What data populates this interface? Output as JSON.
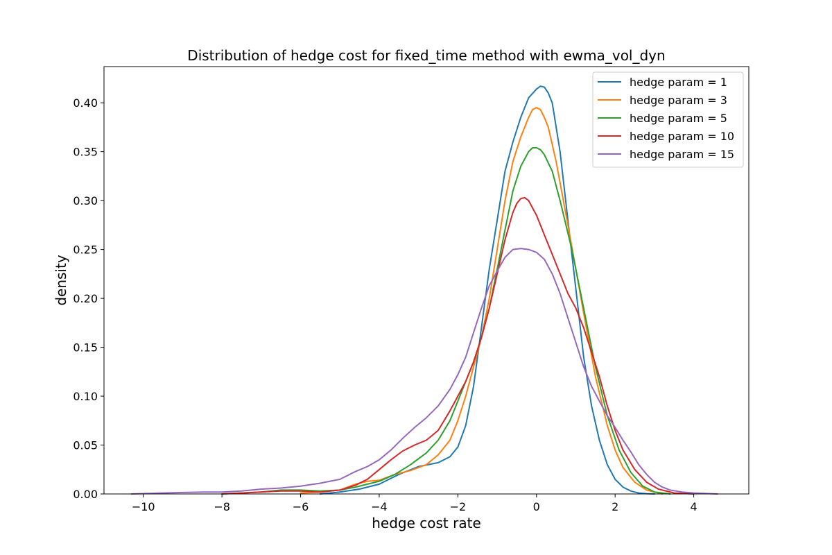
{
  "chart_data": {
    "type": "line",
    "title": "Distribution of hedge cost for fixed_time method with ewma_vol_dyn",
    "xlabel": "hedge cost rate",
    "ylabel": "density",
    "xlim": [
      -11.0,
      5.4
    ],
    "ylim": [
      0.0,
      0.437
    ],
    "xticks": [
      -10,
      -8,
      -6,
      -4,
      -2,
      0,
      2,
      4
    ],
    "xtick_labels": [
      "−10",
      "−8",
      "−6",
      "−4",
      "−2",
      "0",
      "2",
      "4"
    ],
    "yticks": [
      0.0,
      0.05,
      0.1,
      0.15,
      0.2,
      0.25,
      0.3,
      0.35,
      0.4
    ],
    "ytick_labels": [
      "0.00",
      "0.05",
      "0.10",
      "0.15",
      "0.20",
      "0.25",
      "0.30",
      "0.35",
      "0.40"
    ],
    "grid": false,
    "legend_position": "top-right",
    "series": [
      {
        "name": "hedge param = 1",
        "color": "#1f77b4",
        "x": [
          -5.5,
          -5.0,
          -4.5,
          -4.0,
          -3.5,
          -3.0,
          -2.5,
          -2.2,
          -2.0,
          -1.8,
          -1.6,
          -1.4,
          -1.2,
          -1.0,
          -0.8,
          -0.6,
          -0.4,
          -0.2,
          0.0,
          0.1,
          0.2,
          0.3,
          0.4,
          0.6,
          0.8,
          1.0,
          1.2,
          1.4,
          1.6,
          1.8,
          2.0,
          2.2,
          2.4,
          2.6,
          2.8,
          3.0
        ],
        "y": [
          0.0,
          0.002,
          0.005,
          0.01,
          0.02,
          0.028,
          0.032,
          0.038,
          0.048,
          0.07,
          0.11,
          0.17,
          0.23,
          0.28,
          0.33,
          0.36,
          0.385,
          0.405,
          0.414,
          0.417,
          0.416,
          0.41,
          0.4,
          0.35,
          0.28,
          0.21,
          0.14,
          0.09,
          0.055,
          0.03,
          0.015,
          0.007,
          0.003,
          0.001,
          0.0003,
          0.0
        ]
      },
      {
        "name": "hedge param = 3",
        "color": "#ff7f0e",
        "x": [
          -6.0,
          -5.5,
          -5.0,
          -4.6,
          -4.3,
          -4.0,
          -3.6,
          -3.2,
          -2.8,
          -2.5,
          -2.2,
          -2.0,
          -1.8,
          -1.6,
          -1.4,
          -1.2,
          -1.0,
          -0.8,
          -0.6,
          -0.4,
          -0.2,
          -0.1,
          0.0,
          0.1,
          0.2,
          0.3,
          0.5,
          0.8,
          1.0,
          1.2,
          1.5,
          1.8,
          2.0,
          2.2,
          2.5,
          2.8,
          3.2
        ],
        "y": [
          0.001,
          0.002,
          0.004,
          0.01,
          0.013,
          0.014,
          0.02,
          0.024,
          0.03,
          0.04,
          0.055,
          0.075,
          0.1,
          0.13,
          0.16,
          0.2,
          0.25,
          0.3,
          0.34,
          0.365,
          0.385,
          0.393,
          0.395,
          0.393,
          0.385,
          0.375,
          0.34,
          0.275,
          0.23,
          0.185,
          0.12,
          0.07,
          0.045,
          0.027,
          0.012,
          0.004,
          0.0
        ]
      },
      {
        "name": "hedge param = 5",
        "color": "#2ca02c",
        "x": [
          -8.0,
          -7.0,
          -6.5,
          -6.0,
          -5.5,
          -5.0,
          -4.6,
          -4.3,
          -4.0,
          -3.6,
          -3.2,
          -2.8,
          -2.5,
          -2.2,
          -2.0,
          -1.8,
          -1.6,
          -1.4,
          -1.2,
          -1.0,
          -0.8,
          -0.6,
          -0.4,
          -0.2,
          -0.1,
          0.0,
          0.1,
          0.2,
          0.4,
          0.6,
          0.9,
          1.2,
          1.5,
          1.8,
          2.1,
          2.4,
          2.7,
          3.0,
          3.4
        ],
        "y": [
          0.0,
          0.002,
          0.004,
          0.004,
          0.003,
          0.004,
          0.007,
          0.01,
          0.013,
          0.02,
          0.03,
          0.042,
          0.055,
          0.075,
          0.095,
          0.115,
          0.135,
          0.16,
          0.19,
          0.23,
          0.27,
          0.31,
          0.335,
          0.35,
          0.354,
          0.354,
          0.352,
          0.347,
          0.33,
          0.3,
          0.25,
          0.19,
          0.13,
          0.08,
          0.045,
          0.022,
          0.008,
          0.002,
          0.0
        ]
      },
      {
        "name": "hedge param = 10",
        "color": "#d62728",
        "x": [
          -8.0,
          -7.0,
          -6.5,
          -6.0,
          -5.5,
          -5.0,
          -4.6,
          -4.3,
          -4.0,
          -3.7,
          -3.4,
          -3.1,
          -2.8,
          -2.5,
          -2.2,
          -2.0,
          -1.8,
          -1.6,
          -1.4,
          -1.2,
          -1.0,
          -0.8,
          -0.6,
          -0.5,
          -0.4,
          -0.3,
          -0.2,
          0.0,
          0.2,
          0.4,
          0.6,
          0.8,
          1.0,
          1.2,
          1.4,
          1.6,
          1.8,
          2.0,
          2.2,
          2.5,
          2.8,
          3.1,
          3.5,
          4.0
        ],
        "y": [
          0.0,
          0.002,
          0.003,
          0.003,
          0.002,
          0.004,
          0.009,
          0.015,
          0.025,
          0.035,
          0.044,
          0.05,
          0.055,
          0.065,
          0.085,
          0.1,
          0.115,
          0.135,
          0.16,
          0.19,
          0.225,
          0.26,
          0.288,
          0.297,
          0.302,
          0.303,
          0.3,
          0.285,
          0.265,
          0.245,
          0.225,
          0.205,
          0.19,
          0.17,
          0.145,
          0.12,
          0.09,
          0.065,
          0.045,
          0.025,
          0.012,
          0.005,
          0.001,
          0.0
        ]
      },
      {
        "name": "hedge param = 15",
        "color": "#9467bd",
        "x": [
          -10.3,
          -9.5,
          -8.5,
          -8.0,
          -7.5,
          -7.0,
          -6.5,
          -6.0,
          -5.5,
          -5.0,
          -4.6,
          -4.3,
          -4.0,
          -3.7,
          -3.4,
          -3.1,
          -2.8,
          -2.5,
          -2.2,
          -2.0,
          -1.8,
          -1.6,
          -1.4,
          -1.2,
          -1.0,
          -0.8,
          -0.6,
          -0.4,
          -0.2,
          0.0,
          0.2,
          0.4,
          0.6,
          0.8,
          1.0,
          1.2,
          1.4,
          1.6,
          1.8,
          2.0,
          2.2,
          2.4,
          2.6,
          2.8,
          3.0,
          3.2,
          3.4,
          3.7,
          4.0,
          4.6
        ],
        "y": [
          0.0,
          0.001,
          0.002,
          0.002,
          0.003,
          0.005,
          0.006,
          0.008,
          0.011,
          0.015,
          0.023,
          0.028,
          0.035,
          0.045,
          0.057,
          0.068,
          0.078,
          0.09,
          0.107,
          0.122,
          0.14,
          0.165,
          0.19,
          0.213,
          0.228,
          0.242,
          0.25,
          0.251,
          0.25,
          0.247,
          0.24,
          0.225,
          0.205,
          0.18,
          0.155,
          0.13,
          0.11,
          0.095,
          0.08,
          0.068,
          0.055,
          0.043,
          0.03,
          0.02,
          0.012,
          0.007,
          0.004,
          0.002,
          0.001,
          0.0
        ]
      }
    ]
  }
}
